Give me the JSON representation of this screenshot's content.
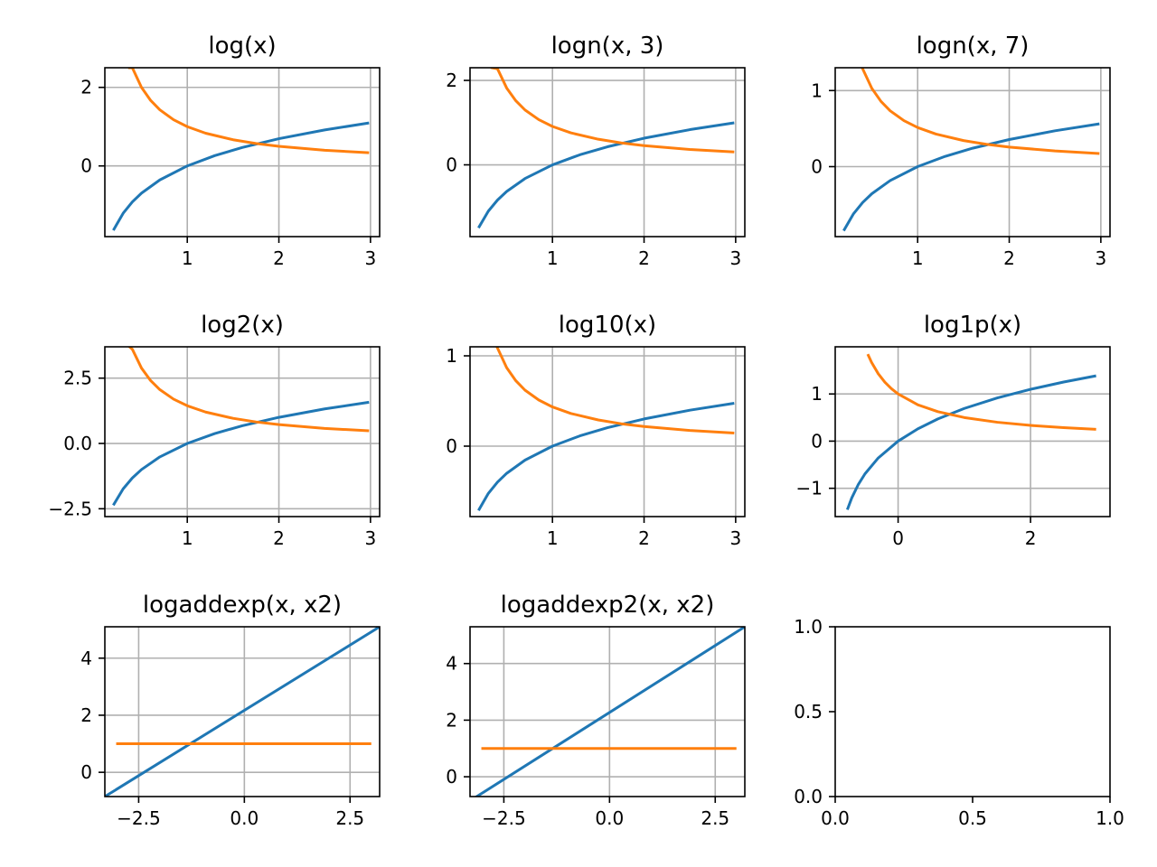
{
  "colors": {
    "series_1": "#1f77b4",
    "series_2": "#ff7f0e",
    "grid": "#b0b0b0",
    "axes": "#000000",
    "background": "#ffffff"
  },
  "chart_data": [
    {
      "type": "line",
      "title": "log(x)",
      "grid": true,
      "xlim": [
        0.1,
        3.1
      ],
      "ylim": [
        -1.8,
        2.5
      ],
      "xticks": [
        1,
        2,
        3
      ],
      "xtick_labels": [
        "1",
        "2",
        "3"
      ],
      "yticks": [
        0,
        2
      ],
      "ytick_labels": [
        "0",
        "2"
      ],
      "series": [
        {
          "x": [
            0.2,
            0.3,
            0.4,
            0.5,
            0.7,
            1.0,
            1.3,
            1.6,
            2.0,
            2.5,
            2.97
          ],
          "y": [
            -1.609,
            -1.204,
            -0.916,
            -0.693,
            -0.357,
            0.0,
            0.262,
            0.47,
            0.693,
            0.916,
            1.089
          ]
        },
        {
          "x": [
            0.37,
            0.4,
            0.5,
            0.6,
            0.7,
            0.85,
            1.0,
            1.2,
            1.5,
            1.75,
            2.0,
            2.5,
            2.97
          ],
          "y": [
            2.5,
            2.5,
            2.0,
            1.667,
            1.429,
            1.176,
            1.0,
            0.833,
            0.667,
            0.571,
            0.5,
            0.4,
            0.337
          ]
        }
      ]
    },
    {
      "type": "line",
      "title": "logn(x, 3)",
      "grid": true,
      "xlim": [
        0.1,
        3.1
      ],
      "ylim": [
        -1.7,
        2.3
      ],
      "xticks": [
        1,
        2,
        3
      ],
      "xtick_labels": [
        "1",
        "2",
        "3"
      ],
      "yticks": [
        0,
        2
      ],
      "ytick_labels": [
        "0",
        "2"
      ],
      "series": [
        {
          "x": [
            0.2,
            0.3,
            0.4,
            0.5,
            0.7,
            1.0,
            1.3,
            1.6,
            2.0,
            2.5,
            2.97
          ],
          "y": [
            -1.465,
            -1.096,
            -0.834,
            -0.631,
            -0.325,
            0.0,
            0.239,
            0.428,
            0.631,
            0.834,
            0.991
          ]
        },
        {
          "x": [
            0.34,
            0.4,
            0.5,
            0.6,
            0.7,
            0.85,
            1.0,
            1.2,
            1.5,
            1.75,
            2.0,
            2.5,
            2.97
          ],
          "y": [
            2.3,
            2.275,
            1.82,
            1.517,
            1.3,
            1.071,
            0.91,
            0.758,
            0.607,
            0.52,
            0.455,
            0.364,
            0.306
          ]
        }
      ]
    },
    {
      "type": "line",
      "title": "logn(x, 7)",
      "grid": true,
      "xlim": [
        0.1,
        3.1
      ],
      "ylim": [
        -0.92,
        1.3
      ],
      "xticks": [
        1,
        2,
        3
      ],
      "xtick_labels": [
        "1",
        "2",
        "3"
      ],
      "yticks": [
        0,
        1
      ],
      "ytick_labels": [
        "0",
        "1"
      ],
      "series": [
        {
          "x": [
            0.2,
            0.3,
            0.4,
            0.5,
            0.7,
            1.0,
            1.3,
            1.6,
            2.0,
            2.5,
            2.97
          ],
          "y": [
            -0.827,
            -0.619,
            -0.471,
            -0.356,
            -0.183,
            0.0,
            0.135,
            0.242,
            0.356,
            0.471,
            0.56
          ]
        },
        {
          "x": [
            0.4,
            0.5,
            0.6,
            0.7,
            0.85,
            1.0,
            1.2,
            1.5,
            1.75,
            2.0,
            2.5,
            2.97
          ],
          "y": [
            1.285,
            1.028,
            0.857,
            0.734,
            0.605,
            0.514,
            0.428,
            0.343,
            0.294,
            0.257,
            0.206,
            0.173
          ]
        }
      ]
    },
    {
      "type": "line",
      "title": "log2(x)",
      "grid": true,
      "xlim": [
        0.1,
        3.1
      ],
      "ylim": [
        -2.8,
        3.7
      ],
      "xticks": [
        1,
        2,
        3
      ],
      "xtick_labels": [
        "1",
        "2",
        "3"
      ],
      "yticks": [
        -2.5,
        0,
        2.5
      ],
      "ytick_labels": [
        "−2.5",
        "0.0",
        "2.5"
      ],
      "series": [
        {
          "x": [
            0.2,
            0.3,
            0.4,
            0.5,
            0.7,
            1.0,
            1.3,
            1.6,
            2.0,
            2.5,
            2.97
          ],
          "y": [
            -2.322,
            -1.737,
            -1.322,
            -1.0,
            -0.515,
            0.0,
            0.379,
            0.678,
            1.0,
            1.322,
            1.571
          ]
        },
        {
          "x": [
            0.37,
            0.4,
            0.5,
            0.6,
            0.7,
            0.85,
            1.0,
            1.2,
            1.5,
            1.75,
            2.0,
            2.5,
            2.97
          ],
          "y": [
            3.7,
            3.607,
            2.885,
            2.404,
            2.061,
            1.697,
            1.443,
            1.202,
            0.962,
            0.824,
            0.721,
            0.577,
            0.486
          ]
        }
      ]
    },
    {
      "type": "line",
      "title": "log10(x)",
      "grid": true,
      "xlim": [
        0.1,
        3.1
      ],
      "ylim": [
        -0.78,
        1.1
      ],
      "xticks": [
        1,
        2,
        3
      ],
      "xtick_labels": [
        "1",
        "2",
        "3"
      ],
      "yticks": [
        0,
        1
      ],
      "ytick_labels": [
        "0",
        "1"
      ],
      "series": [
        {
          "x": [
            0.2,
            0.3,
            0.4,
            0.5,
            0.7,
            1.0,
            1.3,
            1.6,
            2.0,
            2.5,
            2.97
          ],
          "y": [
            -0.699,
            -0.523,
            -0.398,
            -0.301,
            -0.155,
            0.0,
            0.114,
            0.204,
            0.301,
            0.398,
            0.473
          ]
        },
        {
          "x": [
            0.4,
            0.5,
            0.6,
            0.7,
            0.85,
            1.0,
            1.2,
            1.5,
            1.75,
            2.0,
            2.5,
            2.97
          ],
          "y": [
            1.086,
            0.869,
            0.724,
            0.62,
            0.511,
            0.434,
            0.362,
            0.29,
            0.248,
            0.217,
            0.174,
            0.146
          ]
        }
      ]
    },
    {
      "type": "line",
      "title": "log1p(x)",
      "grid": true,
      "xlim": [
        -0.95,
        3.2
      ],
      "ylim": [
        -1.6,
        2.0
      ],
      "xticks": [
        0,
        2
      ],
      "xtick_labels": [
        "0",
        "2"
      ],
      "yticks": [
        -1,
        0,
        1
      ],
      "ytick_labels": [
        "−1",
        "0",
        "1"
      ],
      "series": [
        {
          "x": [
            -0.76,
            -0.7,
            -0.6,
            -0.5,
            -0.3,
            0.0,
            0.3,
            0.6,
            1.0,
            1.5,
            2.0,
            2.5,
            2.97
          ],
          "y": [
            -1.427,
            -1.204,
            -0.916,
            -0.693,
            -0.357,
            0.0,
            0.262,
            0.47,
            0.693,
            0.916,
            1.099,
            1.253,
            1.379
          ]
        },
        {
          "x": [
            -0.45,
            -0.4,
            -0.3,
            -0.2,
            -0.1,
            0.0,
            0.3,
            0.6,
            1.0,
            1.5,
            2.0,
            2.5,
            2.97
          ],
          "y": [
            1.818,
            1.667,
            1.429,
            1.25,
            1.111,
            1.0,
            0.769,
            0.625,
            0.5,
            0.4,
            0.333,
            0.286,
            0.252
          ]
        }
      ]
    },
    {
      "type": "line",
      "title": "logaddexp(x, x2)",
      "grid": true,
      "xlim": [
        -3.3,
        3.2
      ],
      "ylim": [
        -0.85,
        5.1
      ],
      "xticks": [
        -2.5,
        0,
        2.5
      ],
      "xtick_labels": [
        "−2.5",
        "0.0",
        "2.5"
      ],
      "yticks": [
        0,
        2,
        4
      ],
      "ytick_labels": [
        "0",
        "2",
        "4"
      ],
      "series": [
        {
          "x": [
            -3.3,
            3.2
          ],
          "y": [
            -0.85,
            5.1
          ]
        },
        {
          "x": [
            -3.0,
            2.97
          ],
          "y": [
            1.0,
            1.0
          ]
        }
      ]
    },
    {
      "type": "line",
      "title": "logaddexp2(x, x2)",
      "grid": true,
      "xlim": [
        -3.3,
        3.2
      ],
      "ylim": [
        -0.7,
        5.3
      ],
      "xticks": [
        -2.5,
        0,
        2.5
      ],
      "xtick_labels": [
        "−2.5",
        "0.0",
        "2.5"
      ],
      "yticks": [
        0,
        2,
        4
      ],
      "ytick_labels": [
        "0",
        "2",
        "4"
      ],
      "series": [
        {
          "x": [
            -3.3,
            3.2
          ],
          "y": [
            -0.85,
            5.3
          ]
        },
        {
          "x": [
            -3.0,
            2.97
          ],
          "y": [
            1.0,
            1.0
          ]
        }
      ]
    },
    {
      "type": "line",
      "title": "",
      "grid": false,
      "xlim": [
        0,
        1
      ],
      "ylim": [
        0,
        1
      ],
      "xticks": [
        0,
        0.5,
        1
      ],
      "xtick_labels": [
        "0.0",
        "0.5",
        "1.0"
      ],
      "yticks": [
        0,
        0.5,
        1
      ],
      "ytick_labels": [
        "0.0",
        "0.5",
        "1.0"
      ],
      "series": []
    }
  ]
}
